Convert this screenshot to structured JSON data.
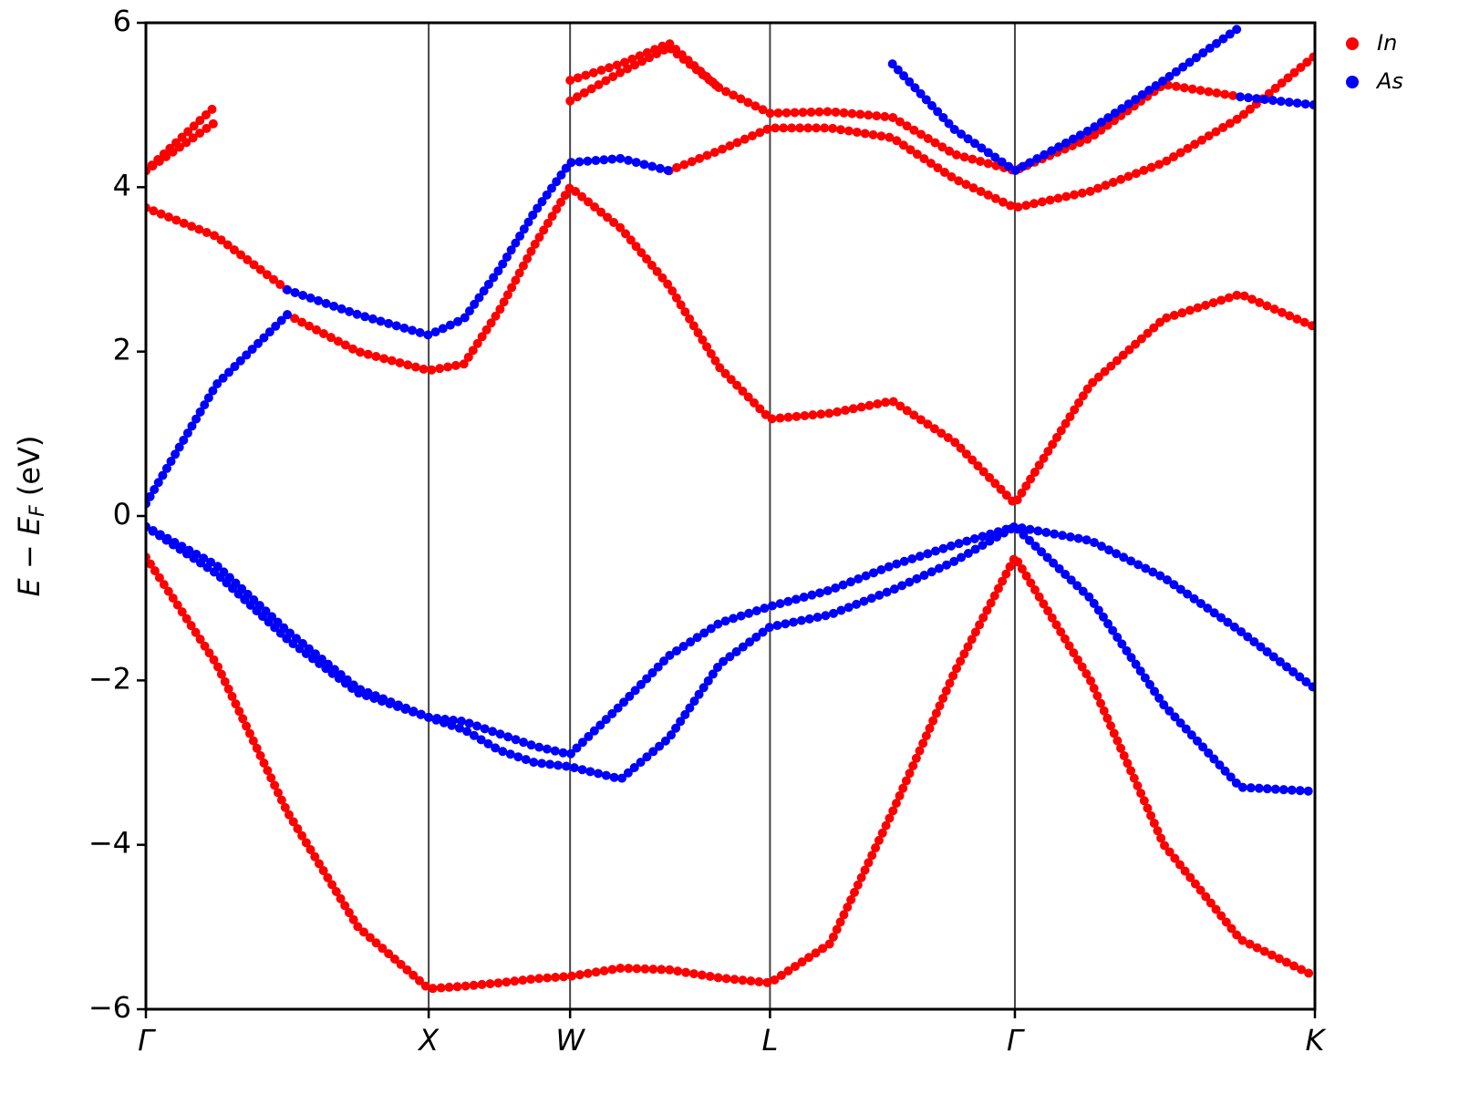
{
  "chart_data": {
    "type": "band",
    "ylabel": [
      "E − E",
      "F",
      " (eV)"
    ],
    "x": [
      0,
      0.25,
      0.5,
      0.75,
      1,
      1.125,
      1.25,
      1.375,
      1.5,
      1.68,
      1.85,
      2.03,
      2.207,
      2.42,
      2.64,
      2.86,
      3.073,
      3.34,
      3.6,
      3.87,
      4.134
    ],
    "xlim": [
      0,
      4.134
    ],
    "xticks": [
      {
        "value": 0,
        "label": "Γ"
      },
      {
        "value": 1,
        "label": "X"
      },
      {
        "value": 1.5,
        "label": "W"
      },
      {
        "value": 2.207,
        "label": "L"
      },
      {
        "value": 3.073,
        "label": "Γ"
      },
      {
        "value": 4.134,
        "label": "K"
      }
    ],
    "ylim": [
      -6,
      6
    ],
    "yticks": [
      {
        "value": -6,
        "label": "−6"
      },
      {
        "value": -4,
        "label": "−4"
      },
      {
        "value": -2,
        "label": "−2"
      },
      0,
      2,
      4,
      6
    ],
    "grid": "x",
    "legend": "upper right outside",
    "series": [
      {
        "name": "In",
        "color": "#ff0000",
        "bands": [
          [
            -0.5,
            -1.8,
            -3.6,
            -5.0,
            -5.75,
            -5.72,
            -5.68,
            -5.63,
            -5.6,
            -5.5,
            -5.52,
            -5.62,
            -5.68,
            -5.2,
            -3.6,
            -1.9,
            -0.5,
            -2.0,
            -4.0,
            -5.15,
            -5.6
          ],
          [
            null,
            null,
            2.45,
            2.0,
            1.77,
            1.85,
            2.5,
            3.3,
            4.0,
            3.5,
            2.8,
            1.8,
            1.18,
            1.25,
            1.4,
            0.9,
            0.15,
            1.6,
            2.4,
            2.7,
            2.3
          ],
          [
            3.75,
            3.4,
            2.75,
            null,
            null,
            null,
            null,
            null,
            null,
            null,
            4.2,
            4.45,
            4.72,
            4.72,
            4.6,
            4.1,
            3.75,
            3.95,
            4.3,
            4.85,
            5.6
          ],
          [
            4.2,
            5.0,
            null,
            null,
            null,
            null,
            null,
            null,
            5.3,
            5.5,
            5.75,
            5.2,
            4.9,
            4.92,
            4.85,
            4.4,
            4.2,
            4.6,
            5.25,
            5.1,
            null
          ],
          [
            4.2,
            4.8,
            null,
            null,
            null,
            null,
            null,
            null,
            5.05,
            5.4,
            5.7,
            5.2,
            null,
            null,
            null,
            null,
            null,
            null,
            null,
            null,
            null
          ]
        ]
      },
      {
        "name": "As",
        "color": "#0000ff",
        "bands": [
          [
            -0.13,
            -0.6,
            -1.4,
            -2.1,
            -2.45,
            -2.5,
            -2.65,
            -2.8,
            -2.9,
            -2.3,
            -1.7,
            -1.3,
            -1.1,
            -0.9,
            -0.6,
            -0.35,
            -0.13,
            -0.3,
            -0.75,
            -1.4,
            -2.1
          ],
          [
            -0.13,
            -0.7,
            -1.5,
            -2.15,
            -2.45,
            -2.6,
            -2.85,
            -3.0,
            -3.05,
            -3.2,
            -2.7,
            -1.8,
            -1.35,
            -1.2,
            -0.9,
            -0.55,
            -0.13,
            -1.0,
            -2.3,
            -3.3,
            -3.35
          ],
          [
            0.15,
            1.6,
            2.45,
            null,
            null,
            null,
            null,
            null,
            null,
            null,
            null,
            null,
            null,
            null,
            null,
            null,
            null,
            null,
            null,
            null,
            null
          ],
          [
            null,
            null,
            2.75,
            2.45,
            2.2,
            2.4,
            3.0,
            3.7,
            4.3,
            4.35,
            4.2,
            null,
            null,
            null,
            null,
            null,
            null,
            null,
            null,
            null,
            null
          ],
          [
            null,
            null,
            null,
            null,
            null,
            null,
            null,
            null,
            null,
            null,
            null,
            null,
            null,
            null,
            5.5,
            4.7,
            4.2,
            4.7,
            5.3,
            5.95,
            null
          ],
          [
            null,
            null,
            null,
            null,
            null,
            null,
            null,
            null,
            null,
            null,
            null,
            null,
            null,
            null,
            null,
            null,
            null,
            null,
            null,
            5.1,
            5.0
          ]
        ]
      }
    ]
  }
}
